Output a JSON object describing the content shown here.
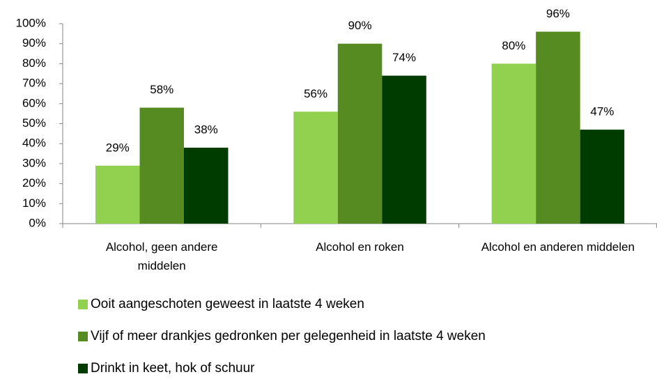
{
  "chart_data": {
    "type": "bar",
    "categories": [
      "Alcohol, geen andere middelen",
      "Alcohol en roken",
      "Alcohol en anderen middelen"
    ],
    "series": [
      {
        "name": "Ooit aangeschoten geweest in laatste 4 weken",
        "color": "#92d050",
        "values": [
          29,
          56,
          80
        ],
        "value_labels": [
          "29%",
          "56%",
          "80%"
        ]
      },
      {
        "name": "Vijf of meer drankjes gedronken per gelegenheid in laatste 4 weken",
        "color": "#568b22",
        "values": [
          58,
          90,
          96
        ],
        "value_labels": [
          "58%",
          "90%",
          "96%"
        ]
      },
      {
        "name": "Drinkt in keet, hok of schuur",
        "color": "#003b00",
        "values": [
          38,
          74,
          47
        ],
        "value_labels": [
          "38%",
          "74%",
          "47%"
        ]
      }
    ],
    "ylim": [
      0,
      100
    ],
    "yticks": [
      {
        "value": 0,
        "label": "0%"
      },
      {
        "value": 10,
        "label": "10%"
      },
      {
        "value": 20,
        "label": "20%"
      },
      {
        "value": 30,
        "label": "30%"
      },
      {
        "value": 40,
        "label": "40%"
      },
      {
        "value": 50,
        "label": "50%"
      },
      {
        "value": 60,
        "label": "60%"
      },
      {
        "value": 70,
        "label": "70%"
      },
      {
        "value": 80,
        "label": "80%"
      },
      {
        "value": 90,
        "label": "90%"
      },
      {
        "value": 100,
        "label": "100%"
      }
    ]
  }
}
